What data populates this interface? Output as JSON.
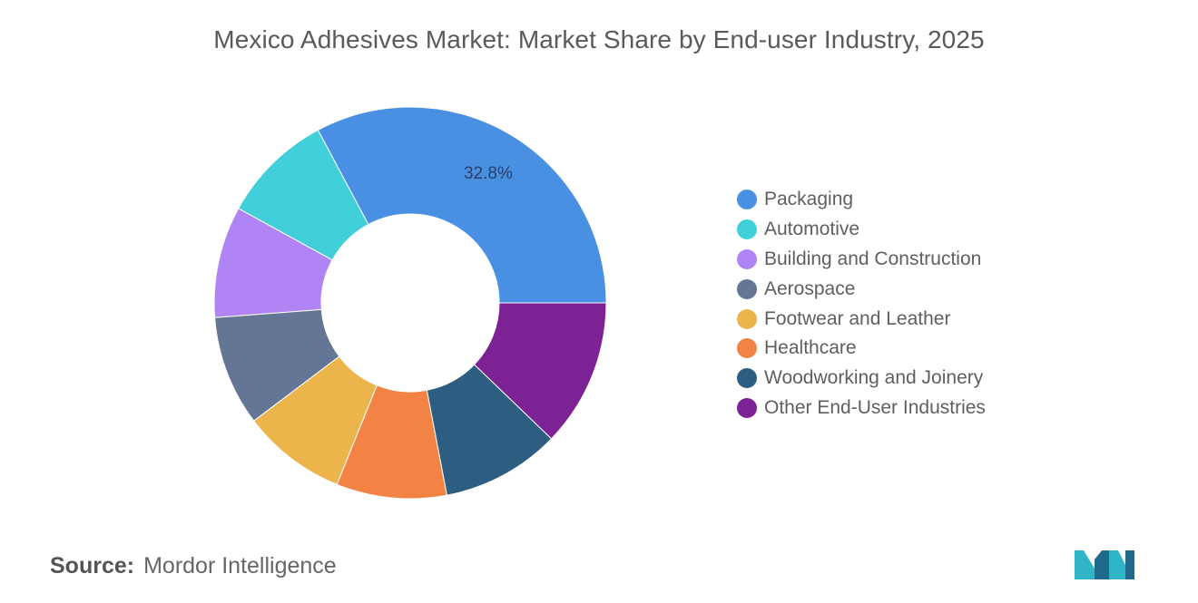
{
  "title": "Mexico Adhesives Market: Market Share by End-user Industry, 2025",
  "source": {
    "label": "Source:",
    "value": "Mordor Intelligence"
  },
  "logo": {
    "name": "Mordor Intelligence logo",
    "colors": [
      "#2fb4c8",
      "#1f6a8a"
    ]
  },
  "chart_data": {
    "type": "pie",
    "style": "donut",
    "title": "Mexico Adhesives Market: Market Share by End-user Industry, 2025",
    "legend_position": "right",
    "start_angle_deg": 0,
    "direction": "counterclockwise",
    "series": [
      {
        "name": "Packaging",
        "value": 32.8,
        "label": "32.8%",
        "color": "#4a90e2"
      },
      {
        "name": "Automotive",
        "value": 9.2,
        "label": "",
        "color": "#41d0d9"
      },
      {
        "name": "Building and Construction",
        "value": 9.2,
        "label": "",
        "color": "#b084f5"
      },
      {
        "name": "Aerospace",
        "value": 9.1,
        "label": "",
        "color": "#647696"
      },
      {
        "name": "Footwear and Leather",
        "value": 8.6,
        "label": "",
        "color": "#ecb54c"
      },
      {
        "name": "Healthcare",
        "value": 9.1,
        "label": "",
        "color": "#f28344"
      },
      {
        "name": "Woodworking and Joinery",
        "value": 9.8,
        "label": "",
        "color": "#2e5d82"
      },
      {
        "name": "Other End-User Industries",
        "value": 12.2,
        "label": "",
        "color": "#7d2294"
      }
    ]
  }
}
